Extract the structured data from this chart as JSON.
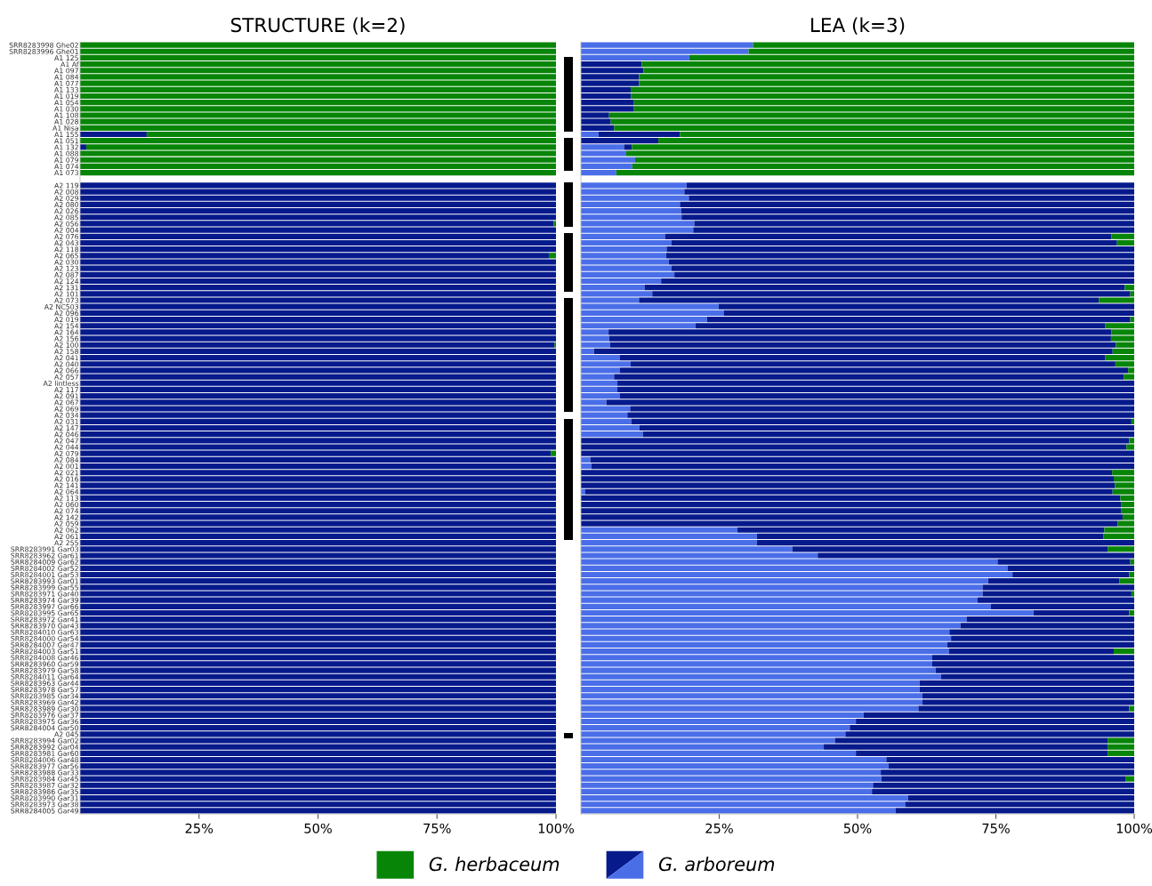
{
  "chart_data": [
    {
      "type": "bar",
      "orientation": "horizontal",
      "stacked": true,
      "title": "STRUCTURE (k=2)",
      "grid": false,
      "legend": "bottom",
      "xlim": [
        0,
        100
      ],
      "xticks": [
        {
          "value": 25,
          "label": "25%"
        },
        {
          "value": 50,
          "label": "50%"
        },
        {
          "value": 75,
          "label": "75%"
        },
        {
          "value": 100,
          "label": "100%"
        }
      ],
      "categories": [
        "SRR8283998 Ghe02",
        "SRR8283996 Ghe01",
        "A1 125",
        "A1 Af",
        "A1 097",
        "A1 084",
        "A1 077",
        "A1 133",
        "A1 019",
        "A1 054",
        "A1 030",
        "A1 108",
        "A1 028",
        "A1 Nisa",
        "A1 155",
        "A1 051",
        "A1 132",
        "A1 088",
        "A1 079",
        "A1 074",
        "A1 073",
        null,
        "A2 119",
        "A2 008",
        "A2 029",
        "A2 080",
        "A2 026",
        "A2 085",
        "A2 056",
        "A2 004",
        "A2 076",
        "A2 043",
        "A2 118",
        "A2 065",
        "A2 030",
        "A2 123",
        "A2 087",
        "A2 124",
        "A2 131",
        "A2 101",
        "A2 073",
        "A2 NC503",
        "A2 096",
        "A2 019",
        "A2 154",
        "A2 164",
        "A2 156",
        "A2 100",
        "A2 158",
        "A2 041",
        "A2 040",
        "A2 066",
        "A2 057",
        "A2 lintless",
        "A2 117",
        "A2 091",
        "A2 067",
        "A2 069",
        "A2 034",
        "A2 031",
        "A2 147",
        "A2 046",
        "A2 047",
        "A2 044",
        "A2 079",
        "A2 084",
        "A2 001",
        "A2 021",
        "A2 016",
        "A2 141",
        "A2 064",
        "A2 113",
        "A2 060",
        "A2 074",
        "A2 142",
        "A2 059",
        "A2 062",
        "A2 061",
        "A2 255",
        "SRR8283991 Gar03",
        "SRR8283962 Gar61",
        "SRR8284009 Gar62",
        "SRR8284002 Gar52",
        "SRR8284001 Gar53",
        "SRR8283993 Gar01",
        "SRR8283999 Gar55",
        "SRR8283971 Gar40",
        "SRR8283974 Gar39",
        "SRR8283997 Gar66",
        "SRR8283995 Gar65",
        "SRR8283972 Gar41",
        "SRR8283970 Gar43",
        "SRR8284010 Gar63",
        "SRR8284000 Gar54",
        "SRR8284007 Gar47",
        "SRR8284003 Gar51",
        "SRR8284008 Gar46",
        "SRR8283960 Gar59",
        "SRR8283979 Gar58",
        "SRR8284011 Gar64",
        "SRR8283963 Gar44",
        "SRR8283978 Gar57",
        "SRR8283985 Gar34",
        "SRR8283969 Gar42",
        "SRR8283989 Gar30",
        "SRR8283976 Gar37",
        "SRR8283975 Gar36",
        "SRR8284004 Gar50",
        "A2 045",
        "SRR8283994 Gar02",
        "SRR8283992 Gar04",
        "SRR8283981 Gar60",
        "SRR8284006 Gar48",
        "SRR8283977 Gar56",
        "SRR8283988 Gar33",
        "SRR8283984 Gar45",
        "SRR8283987 Gar32",
        "SRR8283986 Gar35",
        "SRR8283990 Gar31",
        "SRR8283973 Gar38",
        "SRR8284005 Gar49"
      ],
      "series": [
        {
          "name": "G. arboreum",
          "color": "#061a8c",
          "values": [
            0,
            0,
            0,
            0,
            0,
            0,
            0,
            0,
            0,
            0,
            0,
            0,
            0,
            0,
            14.0,
            0,
            1.3,
            0,
            0,
            0,
            0,
            null,
            100,
            100,
            100,
            100,
            100,
            100,
            99.5,
            100,
            100,
            100,
            100,
            98.5,
            100,
            100,
            100,
            100,
            100,
            100,
            100,
            100,
            100,
            100,
            100,
            100,
            100,
            99.7,
            100,
            100,
            100,
            100,
            100,
            100,
            100,
            100,
            100,
            100,
            100,
            100,
            100,
            100,
            100,
            100,
            98.9,
            100,
            100,
            100,
            100,
            100,
            100,
            100,
            100,
            100,
            100,
            100,
            100,
            100,
            100,
            100,
            100,
            100,
            100,
            100,
            100,
            100,
            100,
            100,
            100,
            100,
            100,
            100,
            100,
            100,
            100,
            100,
            100,
            100,
            100,
            100,
            100,
            100,
            100,
            100,
            100,
            100,
            100,
            100,
            100,
            100,
            100,
            100,
            100,
            100,
            100,
            100,
            100,
            100,
            100,
            100,
            100
          ]
        },
        {
          "name": "G. herbaceum",
          "color": "#078507",
          "values": [
            100,
            100,
            100,
            100,
            100,
            100,
            100,
            100,
            100,
            100,
            100,
            100,
            100,
            100,
            86.0,
            100,
            98.7,
            100,
            100,
            100,
            100,
            null,
            0,
            0,
            0,
            0,
            0,
            0,
            0.5,
            0,
            0,
            0,
            0,
            1.5,
            0,
            0,
            0,
            0,
            0,
            0,
            0,
            0,
            0,
            0,
            0,
            0,
            0,
            0.3,
            0,
            0,
            0,
            0,
            0,
            0,
            0,
            0,
            0,
            0,
            0,
            0,
            0,
            0,
            0,
            0,
            1.1,
            0,
            0,
            0,
            0,
            0,
            0,
            0,
            0,
            0,
            0,
            0,
            0,
            0,
            0,
            0,
            0,
            0,
            0,
            0,
            0,
            0,
            0,
            0,
            0,
            0,
            0,
            0,
            0,
            0,
            0,
            0,
            0,
            0,
            0,
            0,
            0,
            0,
            0,
            0,
            0,
            0,
            0,
            0,
            0,
            0,
            0,
            0,
            0,
            0,
            0,
            0,
            0,
            0,
            0,
            0,
            0
          ]
        }
      ]
    },
    {
      "type": "bar",
      "orientation": "horizontal",
      "stacked": true,
      "title": "LEA (k=3)",
      "grid": false,
      "tick_labels": "x",
      "xlim": [
        0,
        100
      ],
      "xticks": [
        {
          "value": 25,
          "label": "25%"
        },
        {
          "value": 50,
          "label": "50%"
        },
        {
          "value": 75,
          "label": "75%"
        },
        {
          "value": 100,
          "label": "100%"
        }
      ],
      "series": [
        {
          "color": "#4a6ee8",
          "values": [
            31.1,
            30.3,
            19.6,
            0,
            0,
            0,
            0,
            0,
            0,
            0,
            0,
            0,
            0,
            0,
            3.2,
            0,
            7.8,
            8.2,
            9.8,
            9.3,
            6.4,
            null,
            19.1,
            18.7,
            19.5,
            17.9,
            18.1,
            18.2,
            20.5,
            20.3,
            15.2,
            16.4,
            15.5,
            15.4,
            15.9,
            16.4,
            16.9,
            14.5,
            11.5,
            12.9,
            10.5,
            24.9,
            25.8,
            22.8,
            20.7,
            5.0,
            5.1,
            5.3,
            2.4,
            7.0,
            9.0,
            7.0,
            6.0,
            6.6,
            6.6,
            7.0,
            4.6,
            8.9,
            8.4,
            9.1,
            10.6,
            11.2,
            0,
            0,
            0,
            1.7,
            1.9,
            0,
            0,
            0,
            0.8,
            0,
            0,
            0,
            0,
            0,
            28.3,
            31.8,
            31.8,
            38.2,
            42.8,
            75.3,
            77.1,
            78.0,
            73.6,
            72.6,
            72.6,
            71.7,
            74.1,
            81.8,
            69.7,
            68.6,
            66.6,
            66.9,
            66.2,
            66.5,
            63.5,
            63.5,
            64.1,
            65.1,
            61.2,
            61.2,
            61.7,
            61.7,
            61.0,
            51.1,
            49.7,
            48.6,
            47.8,
            45.9,
            43.9,
            49.7,
            55.2,
            55.6,
            54.2,
            54.3,
            52.8,
            52.6,
            59.1,
            58.6,
            56.9
          ]
        },
        {
          "color": "#061a8c",
          "values": [
            0,
            0,
            0,
            11.0,
            11.3,
            10.5,
            10.5,
            9.0,
            9.1,
            9.6,
            9.6,
            5.1,
            5.4,
            6.0,
            14.7,
            14.0,
            1.4,
            0,
            0,
            0,
            0,
            null,
            80.9,
            81.3,
            80.5,
            82.1,
            81.9,
            81.8,
            79.5,
            79.7,
            80.7,
            80.5,
            84.5,
            84.6,
            84.1,
            83.6,
            83.1,
            85.5,
            86.8,
            86.4,
            83.1,
            75.1,
            74.2,
            76.5,
            74.1,
            90.9,
            90.7,
            91.4,
            93.7,
            87.8,
            87.6,
            91.9,
            92.1,
            93.4,
            93.4,
            93.0,
            95.4,
            91.1,
            91.6,
            90.4,
            89.4,
            88.8,
            99.1,
            98.6,
            100,
            98.3,
            98.1,
            96.0,
            96.3,
            96.5,
            95.3,
            97.5,
            97.6,
            97.7,
            97.9,
            97.0,
            66.3,
            62.6,
            68.2,
            57.0,
            57.2,
            24.0,
            22.9,
            21.1,
            23.7,
            27.4,
            26.9,
            28.3,
            25.9,
            17.3,
            30.3,
            31.4,
            33.4,
            33.1,
            33.8,
            29.8,
            36.5,
            36.5,
            35.9,
            34.9,
            38.8,
            38.8,
            38.3,
            38.3,
            38.1,
            48.9,
            50.3,
            51.4,
            52.2,
            49.3,
            51.3,
            45.5,
            44.8,
            44.4,
            45.8,
            44.1,
            47.2,
            47.4,
            40.9,
            41.4,
            43.1
          ]
        },
        {
          "color": "#078507",
          "values": [
            68.9,
            69.7,
            80.4,
            89.0,
            88.7,
            89.5,
            89.5,
            91.0,
            90.9,
            90.4,
            90.4,
            94.9,
            94.6,
            94.0,
            82.1,
            86.0,
            90.8,
            91.8,
            90.2,
            90.7,
            93.6,
            null,
            0,
            0,
            0,
            0,
            0,
            0,
            0,
            0,
            4.1,
            3.1,
            0,
            0,
            0,
            0,
            0,
            0,
            1.7,
            0.7,
            6.4,
            0,
            0,
            0.7,
            5.2,
            4.1,
            4.2,
            3.3,
            3.9,
            5.2,
            3.4,
            1.1,
            1.9,
            0,
            0,
            0,
            0,
            0,
            0,
            0.5,
            0,
            0,
            0.9,
            1.4,
            0,
            0,
            0,
            4.0,
            3.7,
            3.5,
            3.9,
            2.5,
            2.4,
            2.3,
            2.1,
            3.0,
            5.4,
            5.6,
            0,
            4.8,
            0,
            0.7,
            0,
            0.9,
            2.7,
            0,
            0.5,
            0,
            0,
            0.9,
            0,
            0,
            0,
            0,
            0,
            3.7,
            0,
            0,
            0,
            0,
            0,
            0,
            0,
            0,
            0.9,
            0,
            0,
            0,
            0,
            4.8,
            4.8,
            4.8,
            0,
            0,
            0,
            1.6,
            0,
            0,
            0,
            0,
            0
          ]
        }
      ]
    }
  ]
}
